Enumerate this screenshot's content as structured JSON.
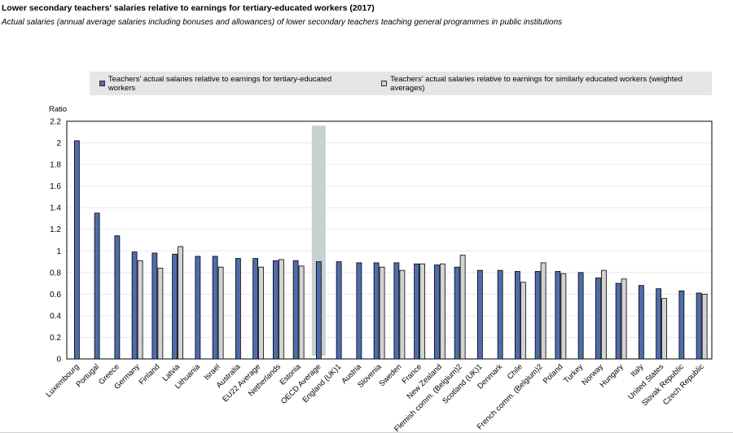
{
  "colors": {
    "series1": "#4f6dab",
    "series2": "#d3d3d3",
    "highlight": "#c9d0d0",
    "legend_bg": "#e6e6e6"
  },
  "chart_data": {
    "type": "bar",
    "title": "Lower secondary teachers' salaries relative to earnings for tertiary-educated workers (2017)",
    "subtitle": "Actual salaries (annual average salaries including bonuses and allowances) of lower secondary teachers teaching general programmes in public institutions",
    "ylabel": "Ratio",
    "xlabel": "",
    "ylim": [
      0,
      2.2
    ],
    "yticks": [
      "0",
      "0.2",
      "0.4",
      "0.6",
      "0.8",
      "1",
      "1.2",
      "1.4",
      "1.6",
      "1.8",
      "2",
      "2.2"
    ],
    "legend_position": "top",
    "highlight_category": "OECD Average",
    "categories": [
      "Luxembourg",
      "Portugal",
      "Greece",
      "Germany",
      "Finland",
      "Latvia",
      "Lithuania",
      "Israel",
      "Australia",
      "EU22 Average",
      "Netherlands",
      "Estonia",
      "OECD Average",
      "England (UK)1",
      "Austria",
      "Slovenia",
      "Sweden",
      "France",
      "New Zealand",
      "Flemish comm. (Belgium)2",
      "Scotland (UK)1",
      "Denmark",
      "Chile",
      "French comm. (Belgium)2",
      "Poland",
      "Turkey",
      "Norway",
      "Hungary",
      "Italy",
      "United States",
      "Slovak Republic",
      "Czech Republic"
    ],
    "series": [
      {
        "name": "Teachers' actual salaries relative to earnings for tertiary-educated workers",
        "values": [
          2.02,
          1.35,
          1.14,
          0.99,
          0.98,
          0.97,
          0.95,
          0.95,
          0.93,
          0.93,
          0.91,
          0.91,
          0.9,
          0.9,
          0.89,
          0.89,
          0.89,
          0.88,
          0.87,
          0.85,
          0.82,
          0.82,
          0.81,
          0.81,
          0.81,
          0.8,
          0.75,
          0.7,
          0.68,
          0.65,
          0.63,
          0.61
        ]
      },
      {
        "name": "Teachers' actual salaries relative to earnings for similarly educated workers (weighted averages)",
        "values": [
          null,
          null,
          null,
          0.91,
          0.84,
          1.04,
          null,
          0.85,
          null,
          0.85,
          0.92,
          0.86,
          null,
          null,
          null,
          0.85,
          0.82,
          0.88,
          0.88,
          0.96,
          null,
          null,
          0.71,
          0.89,
          0.79,
          null,
          0.82,
          0.74,
          null,
          0.56,
          null,
          0.6
        ]
      }
    ]
  }
}
